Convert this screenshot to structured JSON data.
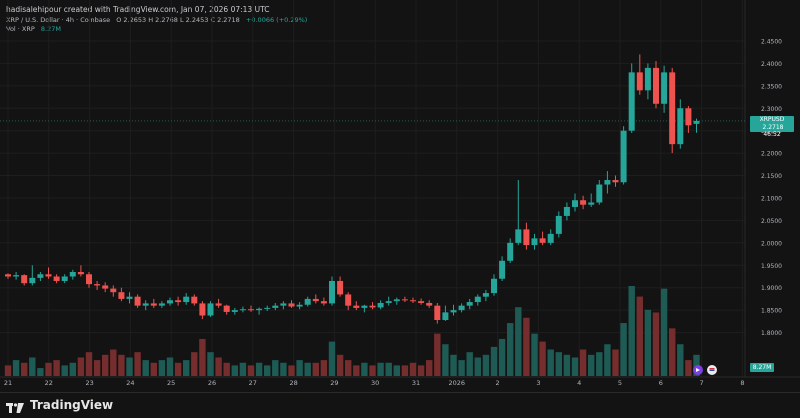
{
  "header": {
    "creator_line": "hadisalehipour created with TradingView.com, Jan 07, 2026 07:13 UTC"
  },
  "legend": {
    "symbol": "XRP / U.S. Dollar · 4h · Coinbase",
    "ohlc": "O 2.2653  H 2.2768  L 2.2453  C 2.2718",
    "change": "+0.0066 (+0.29%)"
  },
  "volume": {
    "label": "Vol · XRP",
    "value": "8.27M"
  },
  "price_tag": {
    "ticker": "XRPUSD",
    "price": "2.2718",
    "countdown": "46:52"
  },
  "volume_tag": "8.27M",
  "brand": "TradingView",
  "colors": {
    "up": "#26a69a",
    "down": "#ef5350",
    "bg": "#131313",
    "grid": "#1e1e1e"
  },
  "chart_data": {
    "type": "candlestick",
    "symbol": "XRPUSD",
    "timeframe": "4h",
    "ylim": [
      1.75,
      2.47
    ],
    "y_ticks": [
      1.8,
      1.85,
      1.9,
      1.95,
      2.0,
      2.05,
      2.1,
      2.15,
      2.2,
      2.25,
      2.3,
      2.35,
      2.4,
      2.45
    ],
    "y_tick_labels": [
      "1.8000",
      "1.8500",
      "1.9000",
      "1.9500",
      "2.0000",
      "2.0500",
      "2.1000",
      "2.1500",
      "2.2000",
      "2.2500",
      "2.3000",
      "2.3500",
      "2.4000",
      "2.4500"
    ],
    "x_labels": [
      "21",
      "22",
      "23",
      "24",
      "25",
      "26",
      "27",
      "28",
      "29",
      "30",
      "31",
      "2026",
      "2",
      "3",
      "4",
      "5",
      "6",
      "7",
      "8"
    ],
    "current_price": 2.2718,
    "candles": [
      [
        1.93,
        1.932,
        1.92,
        1.925
      ],
      [
        1.925,
        1.935,
        1.918,
        1.928
      ],
      [
        1.928,
        1.93,
        1.905,
        1.91
      ],
      [
        1.91,
        1.95,
        1.905,
        1.922
      ],
      [
        1.922,
        1.935,
        1.915,
        1.93
      ],
      [
        1.93,
        1.945,
        1.92,
        1.925
      ],
      [
        1.925,
        1.93,
        1.91,
        1.915
      ],
      [
        1.915,
        1.93,
        1.91,
        1.925
      ],
      [
        1.925,
        1.94,
        1.918,
        1.935
      ],
      [
        1.935,
        1.95,
        1.925,
        1.93
      ],
      [
        1.93,
        1.935,
        1.9,
        1.908
      ],
      [
        1.908,
        1.915,
        1.895,
        1.905
      ],
      [
        1.905,
        1.912,
        1.89,
        1.898
      ],
      [
        1.898,
        1.905,
        1.88,
        1.89
      ],
      [
        1.89,
        1.9,
        1.87,
        1.875
      ],
      [
        1.875,
        1.89,
        1.865,
        1.88
      ],
      [
        1.88,
        1.885,
        1.855,
        1.86
      ],
      [
        1.86,
        1.872,
        1.85,
        1.865
      ],
      [
        1.865,
        1.875,
        1.855,
        1.86
      ],
      [
        1.86,
        1.87,
        1.855,
        1.865
      ],
      [
        1.865,
        1.878,
        1.86,
        1.872
      ],
      [
        1.872,
        1.88,
        1.86,
        1.868
      ],
      [
        1.868,
        1.888,
        1.862,
        1.88
      ],
      [
        1.88,
        1.885,
        1.86,
        1.865
      ],
      [
        1.865,
        1.87,
        1.83,
        1.838
      ],
      [
        1.838,
        1.87,
        1.835,
        1.865
      ],
      [
        1.865,
        1.875,
        1.855,
        1.86
      ],
      [
        1.86,
        1.862,
        1.84,
        1.846
      ],
      [
        1.846,
        1.855,
        1.84,
        1.85
      ],
      [
        1.85,
        1.858,
        1.845,
        1.852
      ],
      [
        1.852,
        1.86,
        1.846,
        1.85
      ],
      [
        1.85,
        1.856,
        1.84,
        1.853
      ],
      [
        1.853,
        1.86,
        1.848,
        1.855
      ],
      [
        1.855,
        1.866,
        1.85,
        1.86
      ],
      [
        1.86,
        1.87,
        1.852,
        1.865
      ],
      [
        1.865,
        1.872,
        1.855,
        1.858
      ],
      [
        1.858,
        1.868,
        1.852,
        1.862
      ],
      [
        1.862,
        1.88,
        1.858,
        1.875
      ],
      [
        1.875,
        1.885,
        1.865,
        1.87
      ],
      [
        1.87,
        1.878,
        1.86,
        1.865
      ],
      [
        1.865,
        1.925,
        1.86,
        1.915
      ],
      [
        1.915,
        1.925,
        1.88,
        1.885
      ],
      [
        1.885,
        1.89,
        1.85,
        1.86
      ],
      [
        1.86,
        1.87,
        1.85,
        1.855
      ],
      [
        1.855,
        1.862,
        1.845,
        1.86
      ],
      [
        1.86,
        1.868,
        1.852,
        1.856
      ],
      [
        1.856,
        1.872,
        1.852,
        1.866
      ],
      [
        1.866,
        1.88,
        1.86,
        1.87
      ],
      [
        1.87,
        1.878,
        1.862,
        1.874
      ],
      [
        1.874,
        1.88,
        1.868,
        1.872
      ],
      [
        1.872,
        1.878,
        1.866,
        1.87
      ],
      [
        1.87,
        1.876,
        1.862,
        1.866
      ],
      [
        1.866,
        1.872,
        1.855,
        1.86
      ],
      [
        1.86,
        1.866,
        1.82,
        1.828
      ],
      [
        1.828,
        1.86,
        1.826,
        1.845
      ],
      [
        1.845,
        1.862,
        1.838,
        1.85
      ],
      [
        1.85,
        1.865,
        1.845,
        1.86
      ],
      [
        1.86,
        1.875,
        1.852,
        1.868
      ],
      [
        1.868,
        1.885,
        1.86,
        1.88
      ],
      [
        1.88,
        1.895,
        1.87,
        1.888
      ],
      [
        1.888,
        1.93,
        1.882,
        1.92
      ],
      [
        1.92,
        1.97,
        1.915,
        1.96
      ],
      [
        1.96,
        2.01,
        1.955,
        2.0
      ],
      [
        2.0,
        2.14,
        1.995,
        2.03
      ],
      [
        2.03,
        2.045,
        1.985,
        1.995
      ],
      [
        1.995,
        2.02,
        1.985,
        2.01
      ],
      [
        2.01,
        2.025,
        1.995,
        2.0
      ],
      [
        2.0,
        2.03,
        1.995,
        2.02
      ],
      [
        2.02,
        2.07,
        2.012,
        2.06
      ],
      [
        2.06,
        2.09,
        2.05,
        2.08
      ],
      [
        2.08,
        2.11,
        2.07,
        2.095
      ],
      [
        2.095,
        2.105,
        2.075,
        2.085
      ],
      [
        2.085,
        2.11,
        2.08,
        2.09
      ],
      [
        2.09,
        2.14,
        2.085,
        2.13
      ],
      [
        2.13,
        2.16,
        2.11,
        2.14
      ],
      [
        2.14,
        2.15,
        2.125,
        2.135
      ],
      [
        2.135,
        2.26,
        2.13,
        2.25
      ],
      [
        2.25,
        2.4,
        2.245,
        2.38
      ],
      [
        2.38,
        2.42,
        2.33,
        2.34
      ],
      [
        2.34,
        2.4,
        2.32,
        2.39
      ],
      [
        2.39,
        2.405,
        2.3,
        2.31
      ],
      [
        2.31,
        2.395,
        2.29,
        2.38
      ],
      [
        2.38,
        2.39,
        2.2,
        2.22
      ],
      [
        2.22,
        2.32,
        2.21,
        2.3
      ],
      [
        2.3,
        2.305,
        2.245,
        2.262
      ],
      [
        2.2653,
        2.2768,
        2.2453,
        2.2718
      ]
    ],
    "volumes": [
      4,
      6,
      5,
      7,
      3,
      5,
      6,
      4,
      5,
      7,
      9,
      6,
      8,
      10,
      8,
      7,
      9,
      6,
      5,
      6,
      7,
      5,
      6,
      9,
      14,
      9,
      7,
      5,
      4,
      5,
      4,
      5,
      4,
      6,
      5,
      4,
      6,
      5,
      5,
      6,
      13,
      8,
      6,
      4,
      5,
      4,
      5,
      5,
      4,
      4,
      5,
      4,
      6,
      16,
      12,
      8,
      6,
      9,
      7,
      8,
      11,
      14,
      20,
      26,
      22,
      16,
      13,
      10,
      9,
      8,
      7,
      10,
      8,
      9,
      12,
      10,
      20,
      34,
      30,
      25,
      24,
      33,
      18,
      12,
      6,
      8
    ]
  }
}
